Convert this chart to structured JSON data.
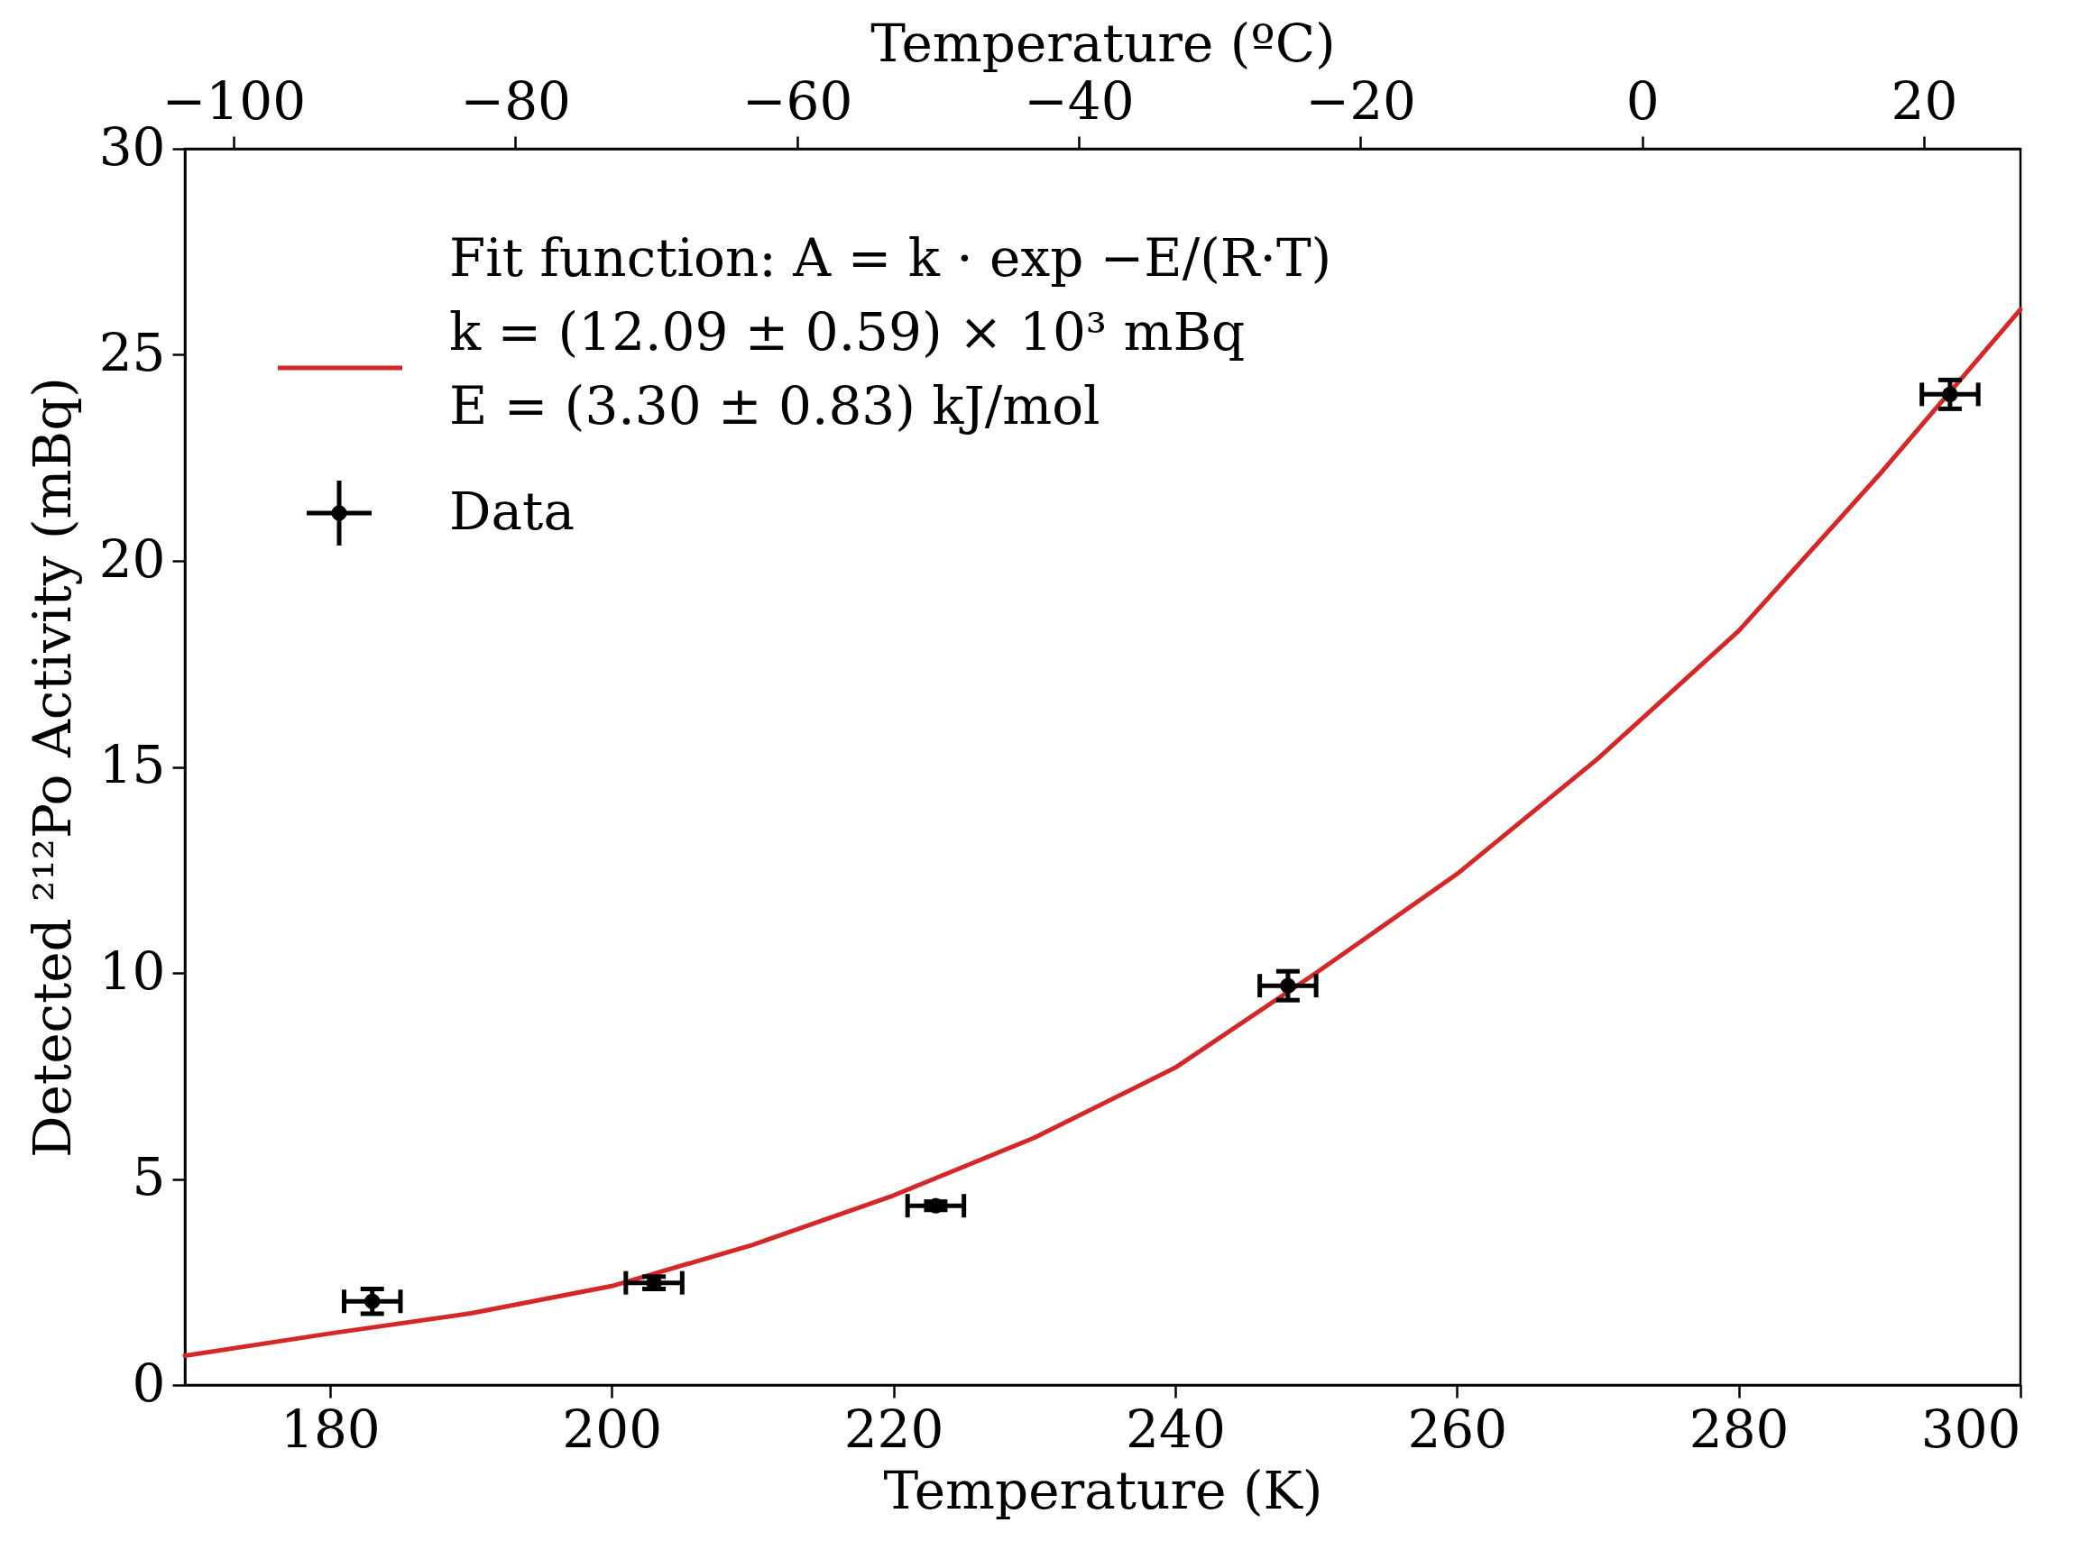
{
  "chart_data": {
    "type": "scatter",
    "xlabel": "Temperature (K)",
    "ylabel": "Detected ²¹²Po Activity (mBq)",
    "x2label": "Temperature (ºC)",
    "xlim": [
      169.7,
      300
    ],
    "xticks": [
      180,
      200,
      220,
      240,
      260,
      280,
      300
    ],
    "ylim": [
      0,
      30
    ],
    "yticks": [
      0,
      5,
      10,
      15,
      20,
      25,
      30
    ],
    "x2lim": [
      -103.45,
      26.85
    ],
    "x2ticks": [
      -100,
      -80,
      -60,
      -40,
      -20,
      0,
      20
    ],
    "legend": "top left",
    "series": [
      {
        "name": "Fit function: A = k · exp −E/(R·T)\nk = (12.09 ± 0.59) × 10³ mBq\nE = (3.30 ± 0.83) kJ/mol",
        "type": "line",
        "color": "#d62728",
        "line_style": "solid",
        "x": [
          169.7,
          180,
          190,
          200,
          210,
          220,
          230,
          240,
          250,
          260,
          270,
          280,
          290,
          300
        ],
        "values": [
          0.71,
          1.25,
          1.74,
          2.4,
          3.4,
          4.6,
          6.0,
          7.7,
          10.0,
          12.4,
          15.2,
          18.3,
          22.1,
          26.1
        ]
      },
      {
        "name": "Data",
        "type": "scatter",
        "color": "#000000",
        "marker": "circle",
        "x": [
          183,
          203,
          223,
          248,
          295
        ],
        "values": [
          2.03,
          2.48,
          4.35,
          9.69,
          24.04
        ],
        "errors": [
          0.3,
          0.15,
          0.1,
          0.35,
          0.35
        ],
        "xerrors": [
          2,
          2,
          2,
          2,
          2
        ]
      }
    ]
  }
}
